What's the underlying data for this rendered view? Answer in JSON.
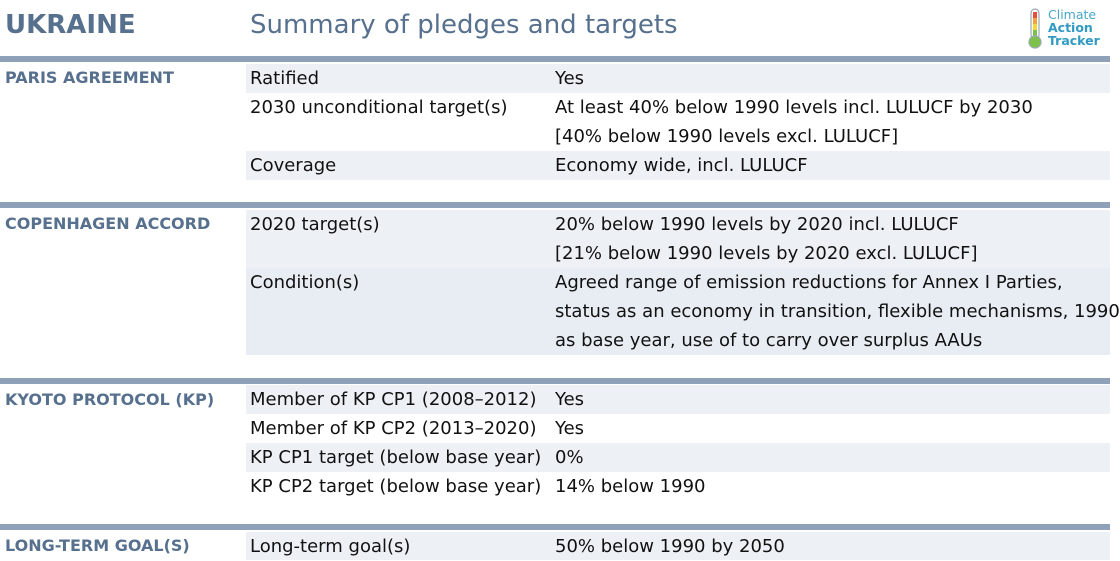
{
  "header": {
    "country": "UKRAINE",
    "subtitle": "Summary of pledges and targets",
    "logo": {
      "icon": "thermometer-icon",
      "line1": "Climate",
      "line2": "Action",
      "line3": "Tracker"
    }
  },
  "sections": [
    {
      "title": "PARIS AGREEMENT",
      "rows": [
        {
          "label": "Ratified",
          "value": [
            "Yes"
          ]
        },
        {
          "label": "2030 unconditional target(s)",
          "value": [
            "At least 40% below 1990 levels incl. LULUCF by 2030",
            "[40% below 1990 levels excl. LULUCF]"
          ]
        },
        {
          "label": "Coverage",
          "value": [
            "Economy wide, incl. LULUCF"
          ]
        }
      ]
    },
    {
      "title": "COPENHAGEN ACCORD",
      "rows": [
        {
          "label": "2020 target(s)",
          "value": [
            "20% below 1990 levels by 2020 incl. LULUCF",
            "[21% below 1990 levels by 2020 excl. LULUCF]"
          ]
        },
        {
          "label": "Condition(s)",
          "value": [
            "Agreed range of emission reductions for Annex I Parties,",
            "status as an economy in transition, flexible mechanisms, 1990",
            "as base year, use of to carry over surplus AAUs"
          ]
        }
      ]
    },
    {
      "title": "KYOTO PROTOCOL (KP)",
      "rows": [
        {
          "label": "Member of KP CP1 (2008–2012)",
          "value": [
            "Yes"
          ]
        },
        {
          "label": "Member of KP CP2 (2013–2020)",
          "value": [
            "Yes"
          ]
        },
        {
          "label": "KP CP1 target (below base year)",
          "value": [
            "0%"
          ]
        },
        {
          "label": "KP CP2 target (below base year)",
          "value": [
            "14% below 1990"
          ]
        }
      ]
    },
    {
      "title": "LONG-TERM GOAL(S)",
      "rows": [
        {
          "label": "Long-term goal(s)",
          "value": [
            "50% below 1990 by 2050"
          ]
        }
      ]
    }
  ],
  "colors": {
    "accent": "#56708e",
    "bar": "#8ea1b8",
    "shade": "#edf1f6",
    "logo": "#4aa6c9"
  }
}
